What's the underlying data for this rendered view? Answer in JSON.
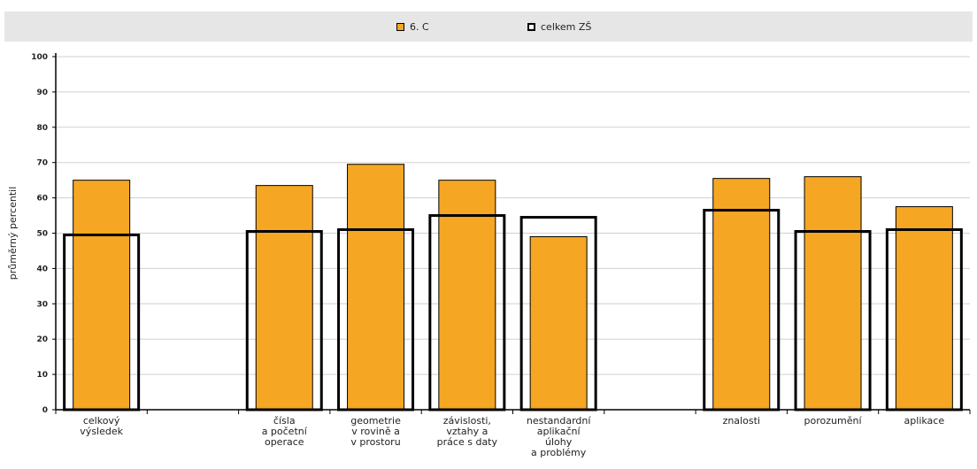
{
  "chart_data": {
    "type": "bar",
    "ylabel": "průměrný percentil",
    "ylim": [
      0,
      100
    ],
    "yticks": [
      0,
      10,
      20,
      30,
      40,
      50,
      60,
      70,
      80,
      90,
      100
    ],
    "grid": true,
    "legend_position": "top",
    "categories": [
      "celkový výsledek",
      "",
      "čísla a početní operace",
      "geometrie v rovině a v prostoru",
      "závislosti, vztahy a práce s daty",
      "nestandardní aplikační úlohy a problémy",
      "",
      "znalosti",
      "porozumění",
      "aplikace"
    ],
    "category_label_lines": [
      [
        "celkový",
        "výsledek"
      ],
      [],
      [
        "čísla",
        "a početní",
        "operace"
      ],
      [
        "geometrie",
        "v rovině a",
        "v prostoru"
      ],
      [
        "závislosti,",
        "vztahy a",
        "práce s daty"
      ],
      [
        "nestandardní",
        "aplikační",
        "úlohy",
        "a problémy"
      ],
      [],
      [
        "znalosti"
      ],
      [
        "porozumění"
      ],
      [
        "aplikace"
      ]
    ],
    "series": [
      {
        "name": "6. C",
        "values": [
          65,
          null,
          63.5,
          69.5,
          65,
          49,
          null,
          65.5,
          66,
          57.5
        ],
        "color": "#f5a623",
        "style": "filled"
      },
      {
        "name": "celkem ZŠ",
        "values": [
          49.5,
          null,
          50.5,
          51,
          55,
          54.5,
          null,
          56.5,
          50.5,
          51
        ],
        "color": "#000000",
        "style": "outline"
      }
    ]
  }
}
